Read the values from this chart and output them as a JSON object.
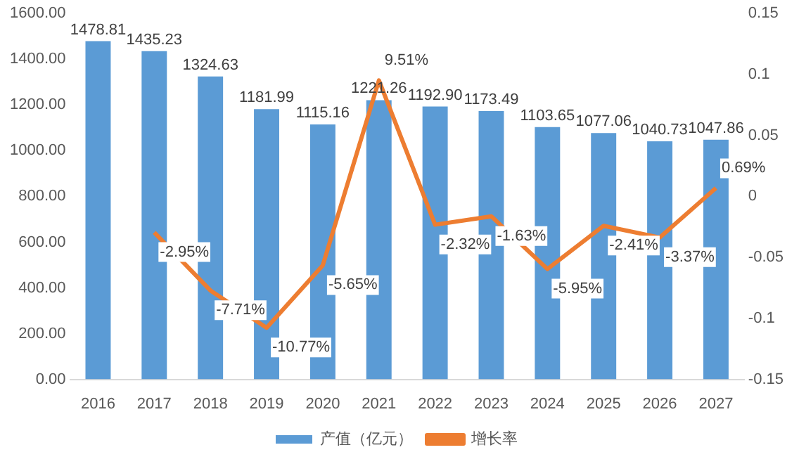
{
  "chart_data": {
    "type": "bar",
    "categories": [
      "2016",
      "2017",
      "2018",
      "2019",
      "2020",
      "2021",
      "2022",
      "2023",
      "2024",
      "2025",
      "2026",
      "2027"
    ],
    "series": [
      {
        "name": "产值（亿元）",
        "type": "bar",
        "color": "#5b9bd5",
        "values": [
          1478.81,
          1435.23,
          1324.63,
          1181.99,
          1115.16,
          1221.26,
          1192.9,
          1173.49,
          1103.65,
          1077.06,
          1040.73,
          1047.86
        ],
        "value_labels": [
          "1478.81",
          "1435.23",
          "1324.63",
          "1181.99",
          "1115.16",
          "1221.26",
          "1192.90",
          "1173.49",
          "1103.65",
          "1077.06",
          "1040.73",
          "1047.86"
        ]
      },
      {
        "name": "增长率",
        "type": "line",
        "axis": "y2",
        "color": "#ed7d31",
        "values": [
          null,
          -0.0295,
          -0.0771,
          -0.1077,
          -0.0565,
          0.0951,
          -0.0232,
          -0.0163,
          -0.0595,
          -0.0241,
          -0.0337,
          0.0069
        ],
        "value_labels": [
          null,
          "-2.95%",
          "-7.71%",
          "-10.77%",
          "-5.65%",
          "9.51%",
          "-2.32%",
          "-1.63%",
          "-5.95%",
          "-2.41%",
          "-3.37%",
          "0.69%"
        ]
      }
    ],
    "ylim": [
      0,
      1600
    ],
    "yticks": [
      {
        "value": 0,
        "label": "0.00"
      },
      {
        "value": 200,
        "label": "200.00"
      },
      {
        "value": 400,
        "label": "400.00"
      },
      {
        "value": 600,
        "label": "600.00"
      },
      {
        "value": 800,
        "label": "800.00"
      },
      {
        "value": 1000,
        "label": "1000.00"
      },
      {
        "value": 1200,
        "label": "1200.00"
      },
      {
        "value": 1400,
        "label": "1400.00"
      },
      {
        "value": 1600,
        "label": "1600.00"
      }
    ],
    "y2lim": [
      -0.15,
      0.15
    ],
    "y2ticks": [
      -0.15,
      -0.1,
      -0.05,
      0,
      0.05,
      0.1,
      0.15
    ],
    "grid": false,
    "legend": "bottom",
    "marker": "none",
    "line_style": "solid"
  }
}
